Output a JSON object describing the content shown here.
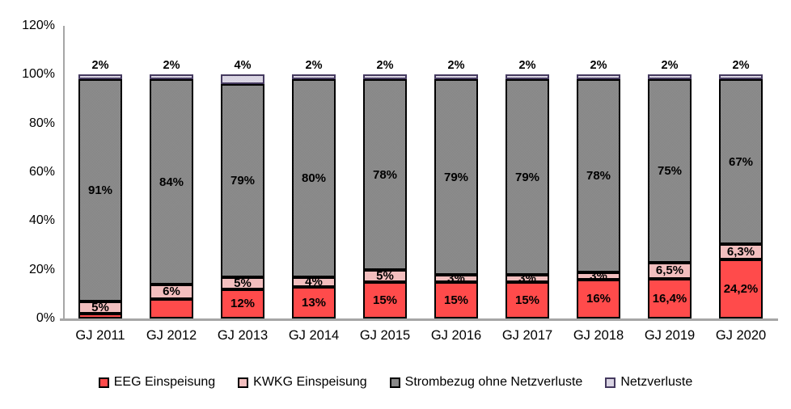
{
  "chart_data": {
    "type": "bar",
    "stacked": true,
    "title": "",
    "xlabel": "",
    "ylabel": "",
    "ylim": [
      0,
      120
    ],
    "grid": false,
    "legend_position": "bottom",
    "y_ticks": [
      "0%",
      "20%",
      "40%",
      "60%",
      "80%",
      "100%",
      "120%"
    ],
    "y_tick_values": [
      0,
      20,
      40,
      60,
      80,
      100,
      120
    ],
    "categories": [
      "GJ 2011",
      "GJ 2012",
      "GJ 2013",
      "GJ 2014",
      "GJ 2015",
      "GJ 2016",
      "GJ 2017",
      "GJ 2018",
      "GJ 2019",
      "GJ 2020"
    ],
    "series": [
      {
        "name": "EEG Einspeisung",
        "color": "#ff4b4b",
        "border_color": "#000000",
        "values": [
          2,
          8,
          12,
          13,
          15,
          15,
          15,
          16,
          16.4,
          24.2
        ],
        "labels": [
          "",
          "",
          "12%",
          "13%",
          "15%",
          "15%",
          "15%",
          "16%",
          "16,4%",
          "24,2%"
        ]
      },
      {
        "name": "KWKG Einspeisung",
        "color": "#f2bebe",
        "border_color": "#000000",
        "values": [
          5,
          6,
          5,
          4,
          5,
          3,
          3,
          3,
          6.5,
          6.3
        ],
        "labels": [
          "5%",
          "6%",
          "5%",
          "4%",
          "5%",
          "3%",
          "3%",
          "3%",
          "6,5%",
          "6,3%"
        ]
      },
      {
        "name": "Strombezug ohne Netzverluste",
        "color": "#8a8a8a",
        "border_color": "#000000",
        "values": [
          91,
          84,
          79,
          80,
          78,
          79,
          79,
          78,
          75,
          67
        ],
        "labels": [
          "91%",
          "84%",
          "79%",
          "80%",
          "78%",
          "79%",
          "79%",
          "78%",
          "75%",
          "67%"
        ]
      },
      {
        "name": "Netzverluste",
        "color": "#d9d4e3",
        "border_color": "#453a5f",
        "values": [
          2,
          2,
          4,
          2,
          2,
          2,
          2,
          2,
          2,
          2
        ],
        "labels": [
          "2%",
          "2%",
          "4%",
          "2%",
          "2%",
          "2%",
          "2%",
          "2%",
          "2%",
          "2%"
        ]
      }
    ]
  }
}
